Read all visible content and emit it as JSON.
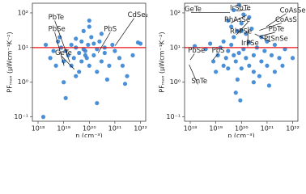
{
  "chart_data": [
    {
      "type": "scatter",
      "x_label": "n (cm⁻³)",
      "y_label": "PFₘₐₓ (μWcm⁻¹K⁻²)",
      "log_x": true,
      "log_y": true,
      "color": "#3584d4",
      "xlim": [
        6e+17,
        1.6e+22
      ],
      "ylim": [
        0.075,
        190
      ],
      "xticks": [
        {
          "value": 1e+18,
          "label": "10¹⁸"
        },
        {
          "value": 1e+19,
          "label": "10¹⁹"
        },
        {
          "value": 1e+20,
          "label": "10²⁰"
        },
        {
          "value": 1e+21,
          "label": "10²¹"
        },
        {
          "value": 1e+22,
          "label": "10²²"
        }
      ],
      "yticks": [
        {
          "value": 0.1,
          "label": "10⁻¹"
        },
        {
          "value": 1,
          "label": "10⁰"
        },
        {
          "value": 10,
          "label": "10¹"
        },
        {
          "value": 100,
          "label": "10²"
        }
      ],
      "reference_line": {
        "value": 10,
        "color": "#e8141c"
      },
      "annotations": [
        "PbTe",
        "PbSe",
        "GeTe",
        "PbS",
        "CdSe₂"
      ],
      "x": [
        2e+18,
        3e+18,
        4e+18,
        5e+18,
        6e+18,
        7e+18,
        8e+18,
        1e+19,
        1e+19,
        1.2e+19,
        1.5e+19,
        2e+19,
        2e+19,
        2.5e+19,
        3e+19,
        3e+19,
        4e+19,
        4e+19,
        5e+19,
        5e+19,
        6e+19,
        7e+19,
        8e+19,
        9e+19,
        1e+20,
        1e+20,
        1.2e+20,
        1.5e+20,
        2e+20,
        2e+20,
        2.5e+20,
        3e+20,
        3e+20,
        4e+20,
        5e+20,
        6e+20,
        8e+20,
        1e+21,
        1.5e+21,
        2e+21,
        3e+21,
        5e+21,
        8e+21,
        1e+22,
        2e+20,
        1e+20,
        3e+19,
        1.6e+18,
        1.2e+19,
        6e+19,
        1.5e+20,
        7e+19,
        4e+20,
        2.5e+21
      ],
      "y": [
        12,
        5,
        8,
        3,
        15,
        20,
        10,
        1,
        4,
        8,
        6,
        12,
        3,
        5,
        10,
        1.5,
        7,
        2,
        15,
        4,
        30,
        8,
        5,
        12,
        40,
        3,
        20,
        6,
        9,
        2,
        15,
        4,
        25,
        7,
        1.2,
        3,
        12,
        8,
        5,
        3,
        1.5,
        6,
        14,
        13,
        0.25,
        60,
        18,
        0.1,
        0.35,
        9,
        13,
        6,
        10,
        0.9
      ]
    },
    {
      "type": "scatter",
      "x_label": "p (cm⁻³)",
      "y_label": "PFₘₐₓ (μWcm⁻¹K⁻²)",
      "log_x": true,
      "log_y": true,
      "color": "#3584d4",
      "xlim": [
        6e+17,
        1.6e+22
      ],
      "ylim": [
        0.075,
        190
      ],
      "xticks": [
        {
          "value": 1e+18,
          "label": "10¹⁸"
        },
        {
          "value": 1e+19,
          "label": "10¹⁹"
        },
        {
          "value": 1e+20,
          "label": "10²⁰"
        },
        {
          "value": 1e+21,
          "label": "10²¹"
        },
        {
          "value": 1e+22,
          "label": "10²²"
        }
      ],
      "yticks": [
        {
          "value": 0.1,
          "label": "10⁻¹"
        },
        {
          "value": 1,
          "label": "10⁰"
        },
        {
          "value": 10,
          "label": "10¹"
        },
        {
          "value": 100,
          "label": "10²"
        }
      ],
      "reference_line": {
        "value": 10,
        "color": "#e8141c"
      },
      "annotations": [
        "GeTe",
        "IrSbTe",
        "CoAsSe",
        "RhAsSe",
        "CoAsS",
        "RhPSe",
        "PbTe",
        "IrPSe",
        "PtSnSe",
        "PbSe",
        "PbS",
        "SnTe"
      ],
      "x": [
        1.5e+18,
        4e+18,
        6e+18,
        8e+18,
        1e+19,
        1.2e+19,
        1.5e+19,
        2e+19,
        2e+19,
        2.5e+19,
        3e+19,
        3e+19,
        4e+19,
        5e+19,
        5e+19,
        6e+19,
        7e+19,
        8e+19,
        1e+20,
        1e+20,
        1.2e+20,
        1.5e+20,
        2e+20,
        2e+20,
        3e+20,
        3e+20,
        4e+20,
        5e+20,
        6e+20,
        8e+20,
        1e+21,
        1.5e+21,
        2e+21,
        3e+21,
        5e+21,
        1e+22,
        8e+19,
        5e+19,
        1.2e+20,
        3e+19,
        2e+20,
        4e+19,
        1e+20,
        7e+19,
        1.5e+20,
        2.5e+20,
        6e+20,
        1e+21,
        2e+21,
        6e+19,
        9e+19,
        3e+20,
        1.2e+21,
        4e+21
      ],
      "y": [
        11,
        9,
        13,
        4,
        2,
        6,
        10,
        3,
        15,
        5,
        2.5,
        8,
        12,
        20,
        6,
        4,
        1.2,
        7,
        30,
        2.5,
        9,
        5,
        14,
        3,
        6,
        2,
        10,
        1.5,
        4,
        8,
        3,
        6,
        2,
        5,
        9,
        5,
        170,
        120,
        90,
        60,
        75,
        40,
        50,
        30,
        25,
        35,
        20,
        15,
        12,
        0.5,
        0.3,
        1,
        0.8,
        3
      ]
    }
  ]
}
